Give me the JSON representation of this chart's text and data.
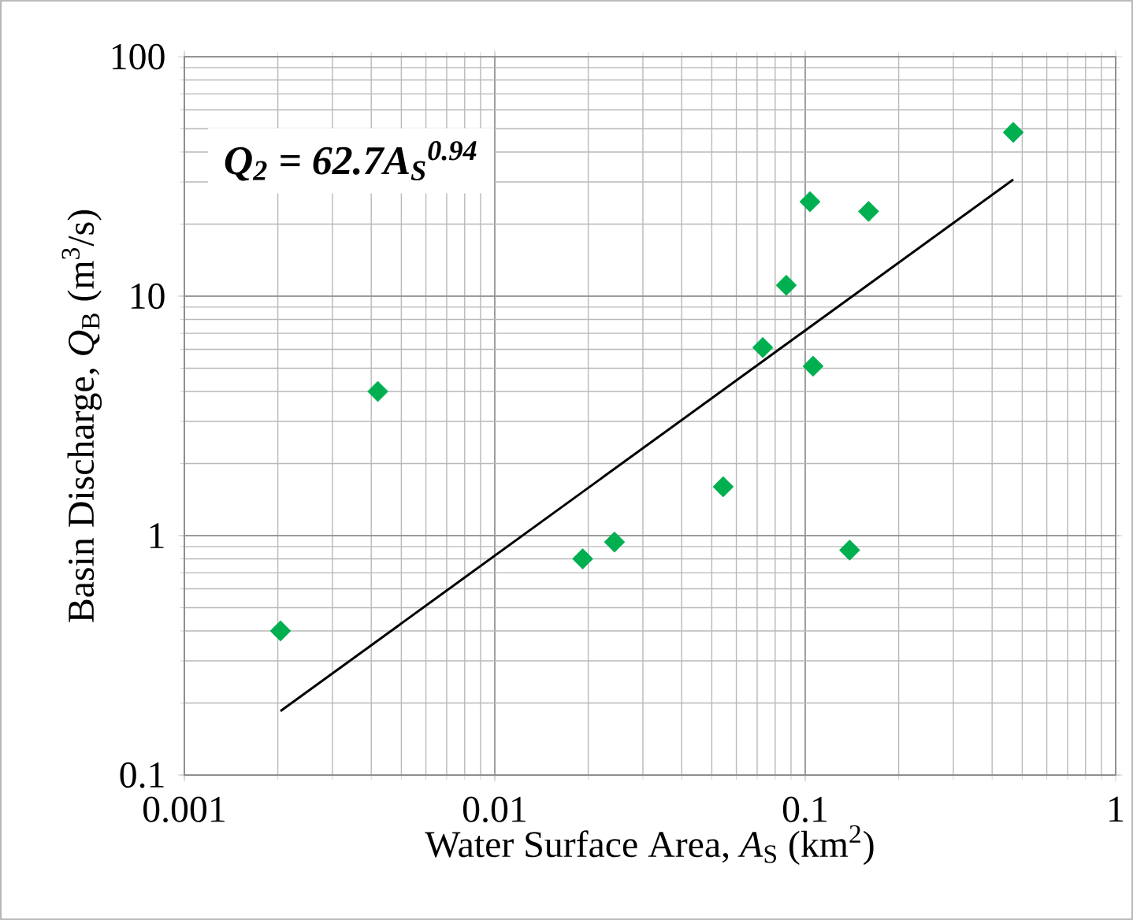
{
  "chart_data": {
    "type": "scatter",
    "xlabel": "Water Surface Area, *A*$_{S}$ (km$^{2}$)",
    "ylabel": "Basin Discharge, *Q*$_{B}$ (m$^{3}$/s)",
    "annotations": [
      "Q$_{2}$ = 62.7A$_{S}$$^{0.94}$"
    ],
    "log": "xy",
    "grid": true,
    "marker": "diamond",
    "xlim": [
      0.001,
      1
    ],
    "ylim": [
      0.1,
      100
    ],
    "xticks": [
      0.001,
      0.01,
      0.1,
      1
    ],
    "yticks": [
      0.1,
      1,
      10,
      100
    ],
    "series": [
      {
        "color": "#00b050",
        "x": [
          0.00204,
          0.0042,
          0.0192,
          0.0243,
          0.0544,
          0.073,
          0.0869,
          0.1036,
          0.106,
          0.139,
          0.16,
          0.468
        ],
        "values": [
          0.4,
          4.0,
          0.8,
          0.94,
          1.6,
          6.1,
          11.1,
          24.8,
          5.1,
          0.87,
          22.6,
          48.3
        ]
      },
      {
        "type": "line",
        "marker": "none",
        "color": "#000000",
        "x": [
          0.00204,
          0.468
        ],
        "values": [
          0.185,
          30.7
        ]
      }
    ]
  }
}
